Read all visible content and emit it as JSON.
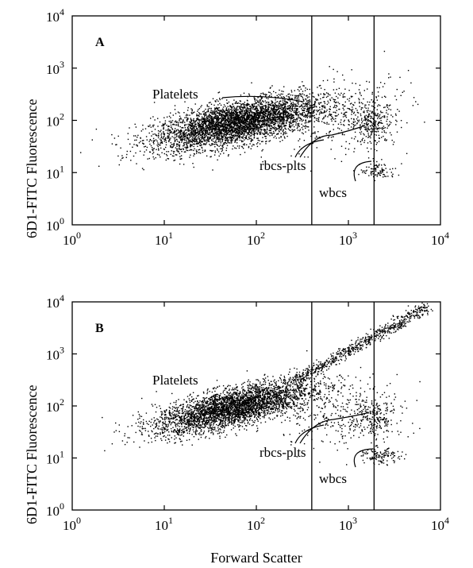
{
  "chart_data": [
    {
      "type": "scatter",
      "panel_label": "A",
      "xlabel": "",
      "ylabel": "6D1-FITC Fluorescence",
      "x_scale": "log",
      "y_scale": "log",
      "xlim": [
        1,
        10000
      ],
      "ylim": [
        1,
        10000
      ],
      "x_ticks": [
        {
          "base": "10",
          "exp": "0"
        },
        {
          "base": "10",
          "exp": "1"
        },
        {
          "base": "10",
          "exp": "2"
        },
        {
          "base": "10",
          "exp": "3"
        },
        {
          "base": "10",
          "exp": "4"
        }
      ],
      "y_ticks": [
        {
          "base": "10",
          "exp": "0"
        },
        {
          "base": "10",
          "exp": "1"
        },
        {
          "base": "10",
          "exp": "2"
        },
        {
          "base": "10",
          "exp": "3"
        },
        {
          "base": "10",
          "exp": "4"
        }
      ],
      "gates_x": [
        400,
        1900
      ],
      "annotations": [
        "Platelets",
        "rbcs-plts",
        "wbcs"
      ],
      "clusters": [
        {
          "x_center": 60,
          "y_center": 90,
          "x_spread_log": 0.45,
          "y_spread_log": 0.2,
          "slope": 0.35,
          "count": 4200
        },
        {
          "x_center": 1800,
          "y_center": 90,
          "x_spread_log": 0.12,
          "y_spread_log": 0.2,
          "slope": 0,
          "count": 260
        },
        {
          "x_center": 2100,
          "y_center": 11,
          "x_spread_log": 0.1,
          "y_spread_log": 0.08,
          "slope": 0,
          "count": 90
        },
        {
          "x_center": 800,
          "y_center": 120,
          "x_spread_log": 0.4,
          "y_spread_log": 0.35,
          "slope": 0.2,
          "count": 350
        }
      ],
      "grid": false,
      "legend": "none"
    },
    {
      "type": "scatter",
      "panel_label": "B",
      "xlabel": "Forward Scatter",
      "ylabel": "6D1-FITC Fluorescence",
      "x_scale": "log",
      "y_scale": "log",
      "xlim": [
        1,
        10000
      ],
      "ylim": [
        1,
        10000
      ],
      "x_ticks": [
        {
          "base": "10",
          "exp": "0"
        },
        {
          "base": "10",
          "exp": "1"
        },
        {
          "base": "10",
          "exp": "2"
        },
        {
          "base": "10",
          "exp": "3"
        },
        {
          "base": "10",
          "exp": "4"
        }
      ],
      "y_ticks": [
        {
          "base": "10",
          "exp": "0"
        },
        {
          "base": "10",
          "exp": "1"
        },
        {
          "base": "10",
          "exp": "2"
        },
        {
          "base": "10",
          "exp": "3"
        },
        {
          "base": "10",
          "exp": "4"
        }
      ],
      "gates_x": [
        400,
        1900
      ],
      "annotations": [
        "Platelets",
        "rbcs-plts",
        "wbcs"
      ],
      "clusters": [
        {
          "x_center": 55,
          "y_center": 95,
          "x_spread_log": 0.42,
          "y_spread_log": 0.18,
          "slope": 0.4,
          "count": 3600
        },
        {
          "x_center": 1800,
          "y_center": 60,
          "x_spread_log": 0.12,
          "y_spread_log": 0.22,
          "slope": 0,
          "count": 230
        },
        {
          "x_center": 2300,
          "y_center": 11,
          "x_spread_log": 0.1,
          "y_spread_log": 0.07,
          "slope": 0,
          "count": 120
        },
        {
          "x_center": 800,
          "y_center": 80,
          "x_spread_log": 0.35,
          "y_spread_log": 0.35,
          "slope": 0.1,
          "count": 300
        }
      ],
      "diagonal": {
        "x_from": 250,
        "x_to": 7000,
        "y_from": 300,
        "y_to": 8000,
        "count": 700,
        "y_spread_log": 0.06
      },
      "grid": false,
      "legend": "none"
    }
  ]
}
